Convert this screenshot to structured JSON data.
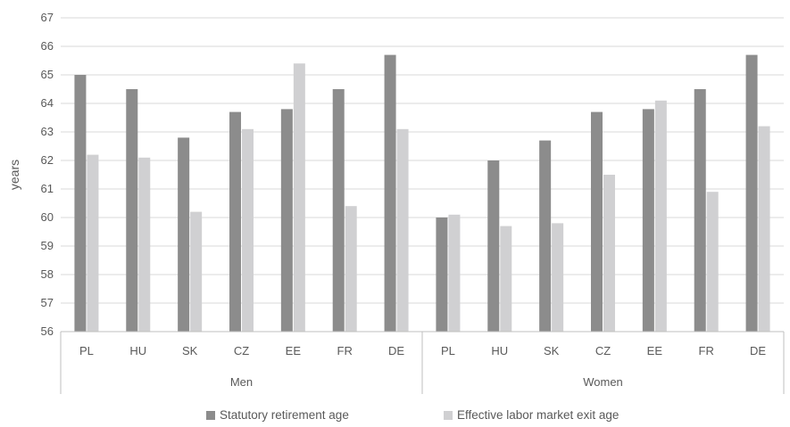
{
  "chart_data": {
    "type": "bar",
    "ylabel": "years",
    "ylim": [
      56,
      67
    ],
    "ytick_step": 1,
    "grid": true,
    "legend_position": "bottom",
    "groups": [
      {
        "label": "Men",
        "categories": [
          "PL",
          "HU",
          "SK",
          "CZ",
          "EE",
          "FR",
          "DE"
        ]
      },
      {
        "label": "Women",
        "categories": [
          "PL",
          "HU",
          "SK",
          "CZ",
          "EE",
          "FR",
          "DE"
        ]
      }
    ],
    "series": [
      {
        "name": "Statutory retirement age",
        "color": "#8c8c8c",
        "values": [
          65.0,
          64.5,
          62.8,
          63.7,
          63.8,
          64.5,
          65.7,
          60.0,
          62.0,
          62.7,
          63.7,
          63.8,
          64.5,
          65.7
        ]
      },
      {
        "name": "Effective labor market exit age",
        "color": "#d0d0d2",
        "values": [
          62.2,
          62.1,
          60.2,
          63.1,
          65.4,
          60.4,
          63.1,
          60.1,
          59.7,
          59.8,
          61.5,
          64.1,
          60.9,
          63.2
        ]
      }
    ]
  }
}
